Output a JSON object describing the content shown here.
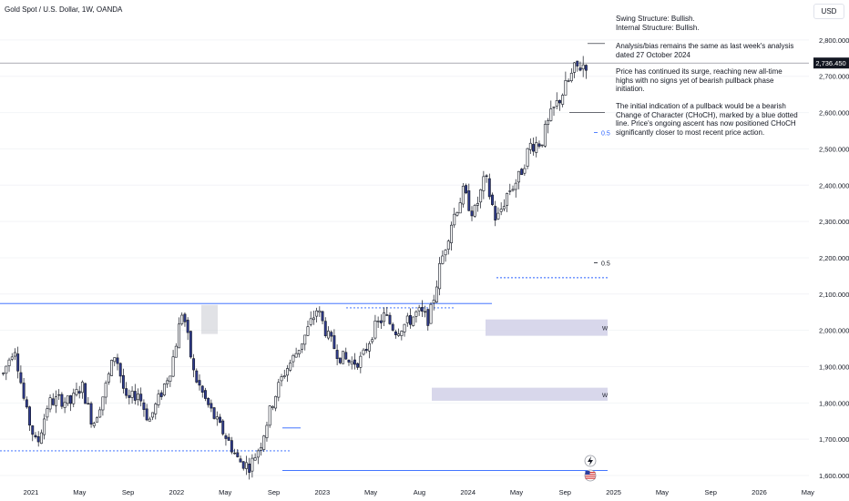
{
  "chart_data": {
    "type": "candlestick",
    "symbol_title": "Gold Spot / U.S. Dollar, 1W, OANDA",
    "currency_label": "USD",
    "price_label": "2,736.450",
    "x_ticks": [
      "2021",
      "May",
      "Sep",
      "2022",
      "May",
      "Sep",
      "2023",
      "May",
      "Aug",
      "2024",
      "May",
      "Sep",
      "2025",
      "May",
      "Sep",
      "2026",
      "May"
    ],
    "y_ticks": [
      "1,600.000",
      "1,700.000",
      "1,800.000",
      "1,900.000",
      "2,000.000",
      "2,100.000",
      "2,200.000",
      "2,300.000",
      "2,400.000",
      "2,500.000",
      "2,600.000",
      "2,700.000",
      "2,800.000"
    ],
    "ylim": [
      1580,
      2880
    ],
    "current_price": 2736.45,
    "fib_labels": [
      {
        "text": "0.5",
        "price": 2545,
        "color": "#2962ff"
      },
      {
        "text": "0.5",
        "price": 2186,
        "color": "#131722"
      }
    ],
    "zones": [
      {
        "label": "W",
        "top": 2030,
        "bottom": 1985
      },
      {
        "label": "W",
        "top": 1842,
        "bottom": 1806
      }
    ],
    "series_path": [
      [
        1880,
        1960
      ],
      [
        1840,
        1780
      ],
      [
        1740,
        1680
      ],
      [
        1720,
        1800
      ],
      [
        1800,
        1810
      ],
      [
        1770,
        1800
      ],
      [
        1810,
        1850
      ],
      [
        1800,
        1740
      ],
      [
        1760,
        1830
      ],
      [
        1800,
        1940
      ],
      [
        1900,
        1800
      ],
      [
        1790,
        1830
      ],
      [
        1840,
        1750
      ],
      [
        1760,
        1820
      ],
      [
        1800,
        1900
      ],
      [
        1880,
        2060
      ],
      [
        1980,
        1880
      ],
      [
        1900,
        1810
      ],
      [
        1840,
        1750
      ],
      [
        1760,
        1700
      ],
      [
        1720,
        1640
      ],
      [
        1660,
        1625
      ],
      [
        1640,
        1690
      ],
      [
        1680,
        1800
      ],
      [
        1800,
        1880
      ],
      [
        1870,
        1930
      ],
      [
        1920,
        1990
      ],
      [
        1980,
        2060
      ],
      [
        2040,
        1980
      ],
      [
        2000,
        1930
      ],
      [
        1940,
        1910
      ],
      [
        1930,
        1920
      ],
      [
        1920,
        2000
      ],
      [
        2000,
        2040
      ],
      [
        2030,
        2000
      ],
      [
        2010,
        2020
      ],
      [
        2020,
        2050
      ],
      [
        2040,
        2030
      ],
      [
        2060,
        2180
      ],
      [
        2170,
        2300
      ],
      [
        2290,
        2380
      ],
      [
        2370,
        2320
      ],
      [
        2330,
        2420
      ],
      [
        2410,
        2300
      ],
      [
        2310,
        2380
      ],
      [
        2380,
        2420
      ],
      [
        2420,
        2510
      ],
      [
        2500,
        2520
      ],
      [
        2520,
        2600
      ],
      [
        2590,
        2660
      ],
      [
        2650,
        2720
      ],
      [
        2710,
        2736
      ]
    ],
    "annotations": [
      "Swing Structure: Bullish.",
      "Internal Structure: Bullish.",
      "Analysis/bias remains the same as last week's analysis dated 27 October 2024",
      "Price has continued its surge, reaching new all-time highs with no signs yet of bearish pullback phase initiation.",
      "The initial indication of a pullback would be a bearish Change of Character (CHoCH), marked by a blue dotted line. Price's ongoing ascent has now positioned CHoCH significantly closer to most recent price action."
    ]
  }
}
